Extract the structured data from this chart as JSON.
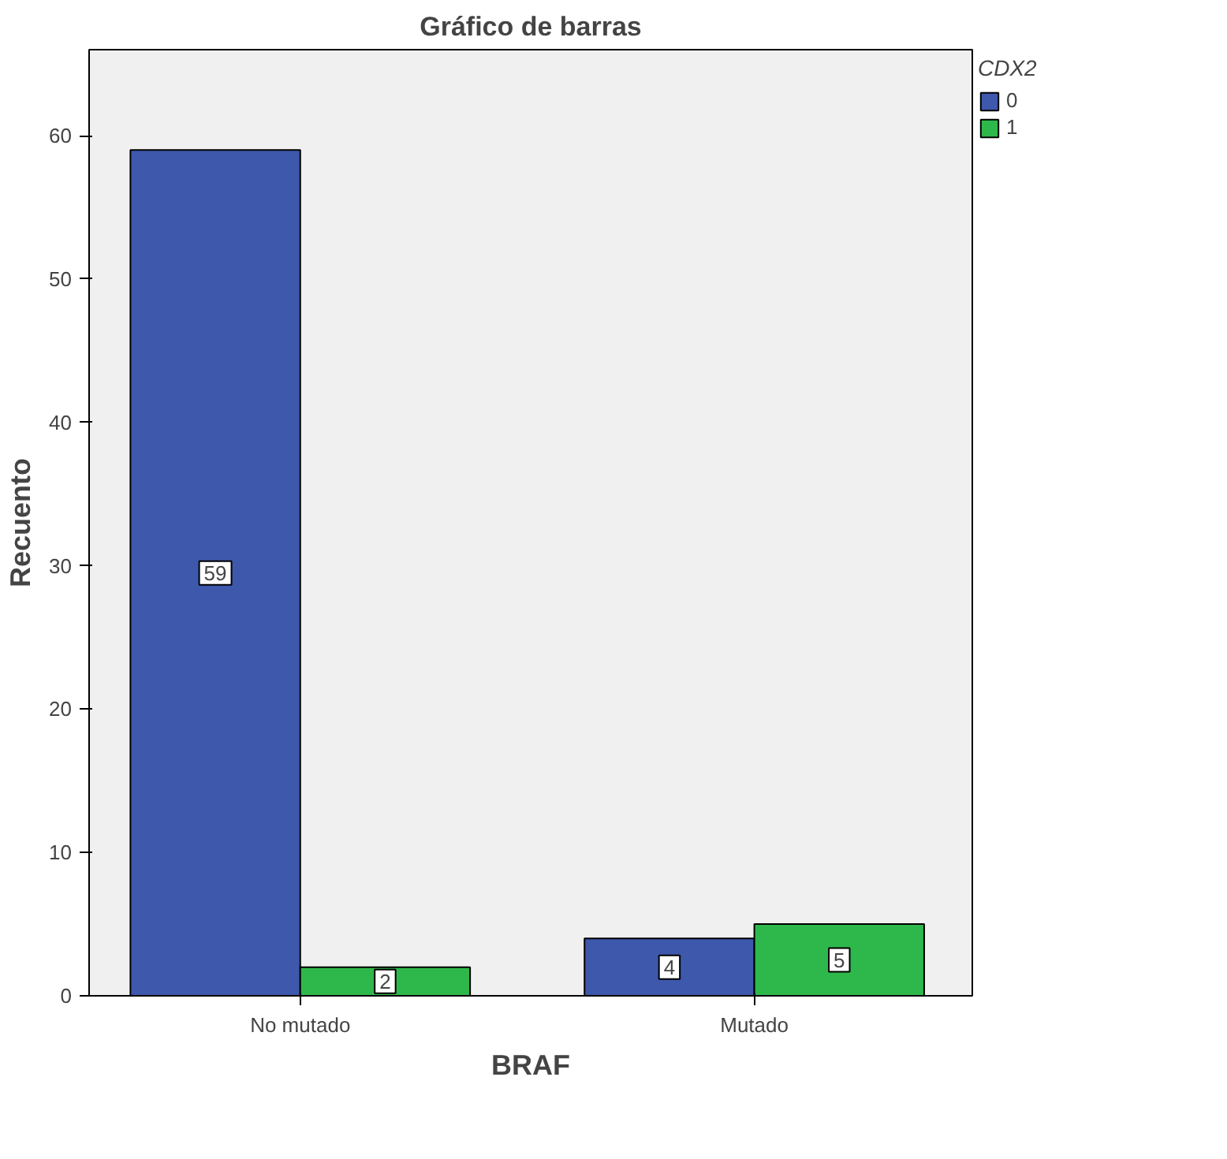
{
  "chart_data": {
    "type": "bar",
    "title": "Gráfico de barras",
    "xlabel": "BRAF",
    "ylabel": "Recuento",
    "legend_title": "CDX2",
    "categories": [
      "No mutado",
      "Mutado"
    ],
    "series": [
      {
        "name": "0",
        "color": "#3e58ac",
        "values": [
          59,
          4
        ]
      },
      {
        "name": "1",
        "color": "#2eb84b",
        "values": [
          2,
          5
        ]
      }
    ],
    "ylim": [
      0,
      66
    ],
    "yticks": [
      0,
      10,
      20,
      30,
      40,
      50,
      60
    ],
    "grid": false,
    "legend": "right",
    "data_labels": true
  }
}
